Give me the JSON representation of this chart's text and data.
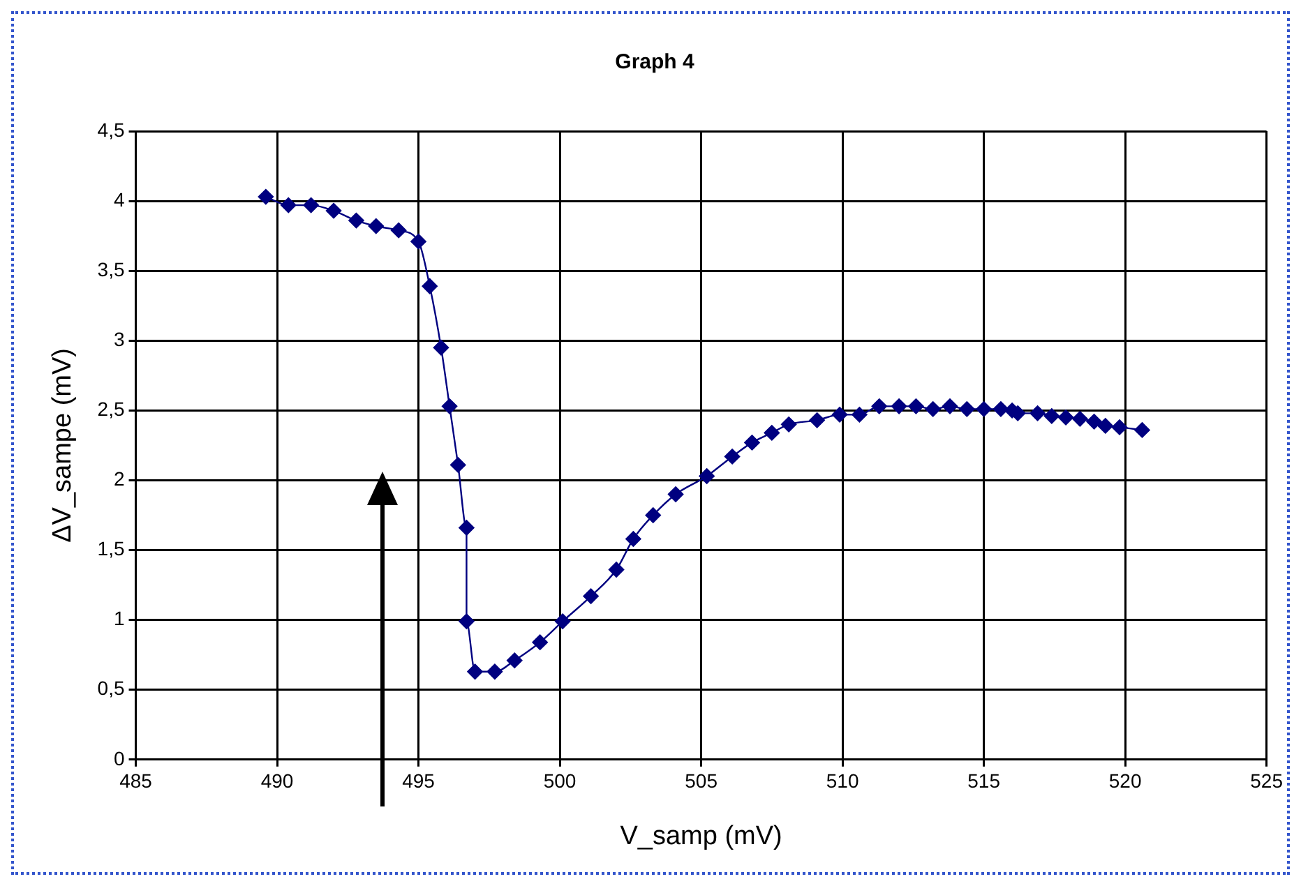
{
  "chart_data": {
    "type": "line",
    "title": "Graph 4",
    "xlabel": "V_samp (mV)",
    "ylabel": "ΔV_sampe (mV)",
    "series": [
      {
        "color": "#000080",
        "x": [
          489.6,
          490.4,
          491.2,
          492.0,
          492.8,
          493.5,
          494.3,
          495.0,
          495.4,
          495.8,
          496.1,
          496.4,
          496.7,
          496.7,
          497.0,
          497.7,
          498.4,
          499.3,
          500.1,
          501.1,
          502.0,
          502.6,
          503.3,
          504.1,
          505.2,
          506.1,
          506.8,
          507.5,
          508.1,
          509.1,
          509.9,
          510.6,
          511.3,
          512.0,
          512.6,
          513.2,
          513.8,
          514.4,
          515.0,
          515.6,
          516.0,
          516.2,
          516.9,
          517.4,
          517.9,
          518.4,
          518.9,
          519.3,
          519.8,
          520.6
        ],
        "values": [
          4.03,
          3.97,
          3.97,
          3.93,
          3.86,
          3.82,
          3.79,
          3.71,
          3.39,
          2.95,
          2.53,
          2.11,
          1.66,
          0.99,
          0.63,
          0.63,
          0.71,
          0.84,
          0.99,
          1.17,
          1.36,
          1.58,
          1.75,
          1.9,
          2.03,
          2.17,
          2.27,
          2.34,
          2.4,
          2.43,
          2.47,
          2.47,
          2.53,
          2.53,
          2.53,
          2.51,
          2.53,
          2.51,
          2.51,
          2.51,
          2.5,
          2.48,
          2.48,
          2.46,
          2.45,
          2.44,
          2.42,
          2.39,
          2.38,
          2.36
        ]
      }
    ],
    "xlim": [
      485,
      525
    ],
    "xticks": [
      485,
      490,
      495,
      500,
      505,
      510,
      515,
      520,
      525
    ],
    "ylim": [
      0,
      4.5
    ],
    "yticks": [
      0,
      {
        "value": 0.5,
        "label": "0,5"
      },
      1,
      {
        "value": 1.5,
        "label": "1,5"
      },
      2,
      {
        "value": 2.5,
        "label": "2,5"
      },
      3,
      {
        "value": 3.5,
        "label": "3,5"
      },
      4,
      {
        "value": 4.5,
        "label": "4,5"
      }
    ],
    "grid": true,
    "legend": false,
    "marker": "diamond",
    "line_style": "solid"
  }
}
